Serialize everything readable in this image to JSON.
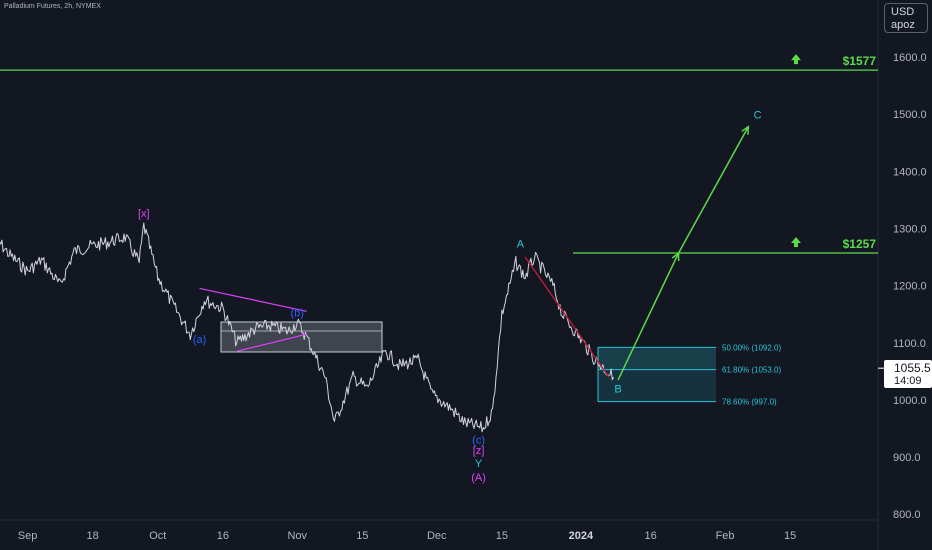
{
  "header": {
    "symbol_line": "Palladium Futures, 2h, NYMEX"
  },
  "axis_badge": {
    "currency": "USD",
    "scale": "apoz"
  },
  "last_price": {
    "value": "1055.5",
    "countdown": "14:09"
  },
  "colors": {
    "background": "#131722",
    "price": "#d1d4dc",
    "green": "#5bd94b",
    "teal": "#26c6da",
    "magenta": "#e040fb",
    "blue": "#2962ff",
    "red": "#c21d3c",
    "grey_box": "#8b8f99"
  },
  "chart_data": {
    "type": "line",
    "title": "",
    "xlabel": "",
    "ylabel": "",
    "ylim": [
      790,
      1660
    ],
    "y_ticks": [
      "1600.0",
      "1500.0",
      "1400.0",
      "1300.0",
      "1200.0",
      "1100.0",
      "1000.0",
      "900.0",
      "800.0"
    ],
    "y_tick_values": [
      1600,
      1500,
      1400,
      1300,
      1200,
      1100,
      1000,
      900,
      800
    ],
    "x_tick_labels": [
      "Sep",
      "18",
      "Oct",
      "16",
      "Nov",
      "15",
      "Dec",
      "15",
      "2024",
      "16",
      "Feb",
      "15"
    ],
    "x_tick_dates": [
      "2023-09-04",
      "2023-09-18",
      "2023-10-02",
      "2023-10-16",
      "2023-11-01",
      "2023-11-15",
      "2023-12-01",
      "2023-12-15",
      "2024-01-01",
      "2024-01-16",
      "2024-02-01",
      "2024-02-15"
    ],
    "series": [
      {
        "x": [
          "2023-08-28",
          "2023-08-31",
          "2023-09-04",
          "2023-09-07",
          "2023-09-11",
          "2023-09-14",
          "2023-09-18",
          "2023-09-21",
          "2023-09-25",
          "2023-09-28",
          "2023-09-29",
          "2023-10-02",
          "2023-10-05",
          "2023-10-09",
          "2023-10-12",
          "2023-10-16",
          "2023-10-19",
          "2023-10-23",
          "2023-10-26",
          "2023-10-30",
          "2023-11-01",
          "2023-11-03",
          "2023-11-07",
          "2023-11-09",
          "2023-11-13",
          "2023-11-16",
          "2023-11-20",
          "2023-11-23",
          "2023-11-27",
          "2023-11-30",
          "2023-12-04",
          "2023-12-07",
          "2023-12-11",
          "2023-12-13",
          "2023-12-15",
          "2023-12-18",
          "2023-12-20",
          "2023-12-22",
          "2023-12-26",
          "2023-12-28",
          "2024-01-02",
          "2024-01-04",
          "2024-01-08"
        ],
        "values": [
          1285,
          1255,
          1225,
          1245,
          1200,
          1260,
          1270,
          1275,
          1285,
          1240,
          1305,
          1215,
          1170,
          1115,
          1175,
          1160,
          1100,
          1125,
          1130,
          1120,
          1135,
          1110,
          1040,
          960,
          1040,
          1020,
          1085,
          1060,
          1070,
          1010,
          985,
          960,
          950,
          980,
          1150,
          1240,
          1215,
          1250,
          1200,
          1150,
          1095,
          1070,
          1040
        ]
      }
    ],
    "horizontal_levels": [
      {
        "value": 1577,
        "label": "$1577"
      },
      {
        "value": 1257,
        "label": "$1257"
      }
    ],
    "fibonacci_levels": [
      {
        "value": 1092.0,
        "label": "50.00% (1092.0)"
      },
      {
        "value": 1053.0,
        "label": "61.80% (1053.0)"
      },
      {
        "value": 997.0,
        "label": "78.60% (997.0)"
      }
    ],
    "wave_labels": [
      {
        "text": "[x]",
        "x": "2023-09-29",
        "y": 1320,
        "color": "magenta"
      },
      {
        "text": "(a)",
        "x": "2023-10-11",
        "y": 1100,
        "color": "blue"
      },
      {
        "text": "(b)",
        "x": "2023-11-01",
        "y": 1146,
        "color": "blue"
      },
      {
        "text": "(c)",
        "x": "2023-12-10",
        "y": 924,
        "color": "blue"
      },
      {
        "text": "[z]",
        "x": "2023-12-10",
        "y": 905,
        "color": "magenta"
      },
      {
        "text": "Y",
        "x": "2023-12-10",
        "y": 883,
        "color": "teal"
      },
      {
        "text": "(A)",
        "x": "2023-12-10",
        "y": 858,
        "color": "magenta"
      },
      {
        "text": "A",
        "x": "2023-12-19",
        "y": 1267,
        "color": "teal"
      },
      {
        "text": "B",
        "x": "2024-01-09",
        "y": 1013,
        "color": "teal"
      },
      {
        "text": "C",
        "x": "2024-02-08",
        "y": 1492,
        "color": "teal"
      }
    ],
    "projection_path": [
      {
        "x": "2024-01-09",
        "y": 1035
      },
      {
        "x": "2024-01-22",
        "y": 1257
      },
      {
        "x": "2024-02-06",
        "y": 1478
      }
    ]
  }
}
